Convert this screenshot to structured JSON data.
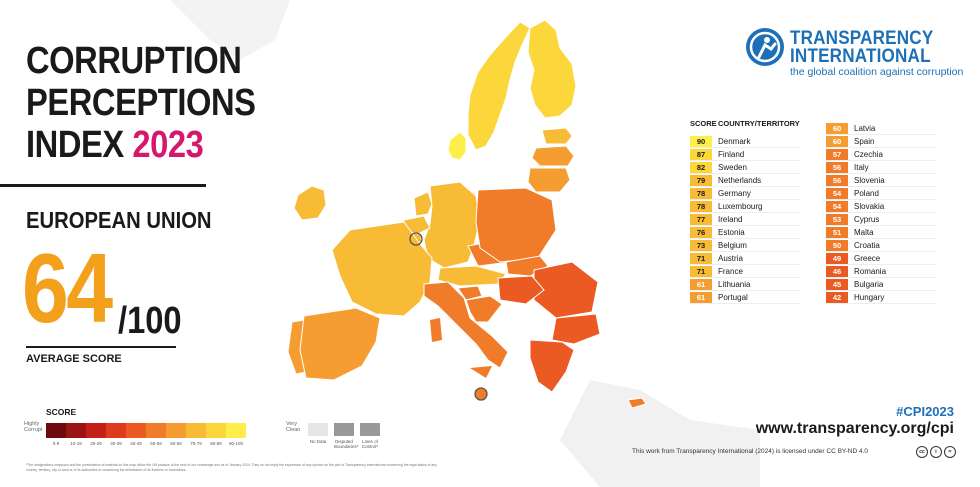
{
  "title": {
    "line1": "CORRUPTION",
    "line2": "PERCEPTIONS",
    "line3": "INDEX",
    "year": "2023"
  },
  "region": "EUROPEAN UNION",
  "score": {
    "value": "64",
    "max": "/100",
    "label": "AVERAGE SCORE"
  },
  "brand": {
    "name_line1": "TRANSPARENCY",
    "name_line2": "INTERNATIONAL",
    "tagline": "the global coalition against corruption",
    "logo_icon": "transparency-international-logo"
  },
  "ranking": {
    "header_score": "SCORE",
    "header_country": "COUNTRY/TERRITORY",
    "left": [
      {
        "score": "90",
        "country": "Denmark"
      },
      {
        "score": "87",
        "country": "Finland"
      },
      {
        "score": "82",
        "country": "Sweden"
      },
      {
        "score": "79",
        "country": "Netherlands"
      },
      {
        "score": "78",
        "country": "Germany"
      },
      {
        "score": "78",
        "country": "Luxembourg"
      },
      {
        "score": "77",
        "country": "Ireland"
      },
      {
        "score": "76",
        "country": "Estonia"
      },
      {
        "score": "73",
        "country": "Belgium"
      },
      {
        "score": "71",
        "country": "Austria"
      },
      {
        "score": "71",
        "country": "France"
      },
      {
        "score": "61",
        "country": "Lithuania"
      },
      {
        "score": "61",
        "country": "Portugal"
      }
    ],
    "right": [
      {
        "score": "60",
        "country": "Latvia"
      },
      {
        "score": "60",
        "country": "Spain"
      },
      {
        "score": "57",
        "country": "Czechia"
      },
      {
        "score": "56",
        "country": "Italy"
      },
      {
        "score": "56",
        "country": "Slovenia"
      },
      {
        "score": "54",
        "country": "Poland"
      },
      {
        "score": "54",
        "country": "Slovakia"
      },
      {
        "score": "53",
        "country": "Cyprus"
      },
      {
        "score": "51",
        "country": "Malta"
      },
      {
        "score": "50",
        "country": "Croatia"
      },
      {
        "score": "49",
        "country": "Greece"
      },
      {
        "score": "46",
        "country": "Romania"
      },
      {
        "score": "45",
        "country": "Bulgaria"
      },
      {
        "score": "42",
        "country": "Hungary"
      }
    ]
  },
  "legend": {
    "title": "SCORE",
    "low_end": "Highly Corrupt",
    "high_end": "Very Clean",
    "ticks": [
      "0-9",
      "10-19",
      "20-29",
      "30-39",
      "40-49",
      "50-59",
      "60-69",
      "70-79",
      "80-89",
      "90-100"
    ],
    "colors": [
      "#6e0a0e",
      "#9b1414",
      "#c42018",
      "#de3a1d",
      "#ea5a22",
      "#f07c2a",
      "#f59d30",
      "#f8bb35",
      "#fbd73c",
      "#fdee4a"
    ],
    "extras": [
      {
        "label": "No Data",
        "color": "#e6e6e6"
      },
      {
        "label": "Disputed Boundaries*",
        "color": "#999999"
      },
      {
        "label": "Lines of Control*",
        "color": "#999999"
      }
    ]
  },
  "footnote": "*The designations employed and the presentation of material on this map follow the UN practice to the best of our knowledge and as of January 2024. They do not imply the expression of any opinion on the part of Transparency International concerning the legal status of any country, territory, city or area or of its authorities or concerning the delimitation of its frontiers or boundaries.",
  "footer": {
    "hashtag": "#CPI2023",
    "url": "www.transparency.org/cpi",
    "license": "This work from Transparency International (2024) is licensed under CC BY-ND 4.0",
    "cc_icons": [
      "cc-icon",
      "by-icon",
      "nd-icon"
    ]
  },
  "map": {
    "countries": [
      {
        "name": "Denmark",
        "score": 90
      },
      {
        "name": "Finland",
        "score": 87
      },
      {
        "name": "Sweden",
        "score": 82
      },
      {
        "name": "Netherlands",
        "score": 79
      },
      {
        "name": "Germany",
        "score": 78
      },
      {
        "name": "Luxembourg",
        "score": 78
      },
      {
        "name": "Ireland",
        "score": 77
      },
      {
        "name": "Estonia",
        "score": 76
      },
      {
        "name": "Belgium",
        "score": 73
      },
      {
        "name": "Austria",
        "score": 71
      },
      {
        "name": "France",
        "score": 71
      },
      {
        "name": "Lithuania",
        "score": 61
      },
      {
        "name": "Portugal",
        "score": 61
      },
      {
        "name": "Latvia",
        "score": 60
      },
      {
        "name": "Spain",
        "score": 60
      },
      {
        "name": "Czechia",
        "score": 57
      },
      {
        "name": "Italy",
        "score": 56
      },
      {
        "name": "Slovenia",
        "score": 56
      },
      {
        "name": "Poland",
        "score": 54
      },
      {
        "name": "Slovakia",
        "score": 54
      },
      {
        "name": "Cyprus",
        "score": 53
      },
      {
        "name": "Malta",
        "score": 51
      },
      {
        "name": "Croatia",
        "score": 50
      },
      {
        "name": "Greece",
        "score": 49
      },
      {
        "name": "Romania",
        "score": 46
      },
      {
        "name": "Bulgaria",
        "score": 45
      },
      {
        "name": "Hungary",
        "score": 42
      }
    ]
  }
}
